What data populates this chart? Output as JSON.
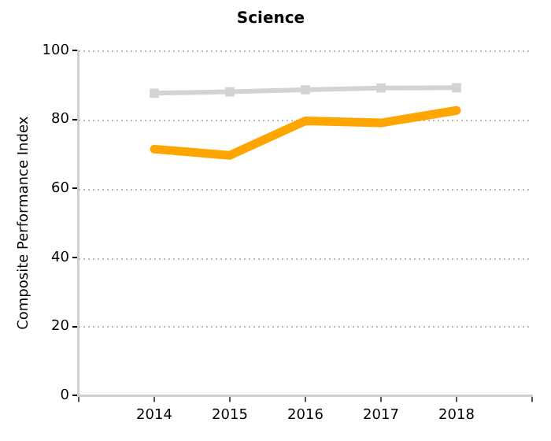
{
  "chart_data": {
    "type": "line",
    "title": "Science",
    "ylabel": "Composite Performance Index",
    "x": [
      2014,
      2015,
      2016,
      2017,
      2018
    ],
    "series": [
      {
        "color": "#d3d3d3",
        "values": [
          87.6,
          88,
          88.6,
          89.1,
          89.2
        ],
        "marker": "square"
      },
      {
        "color": "#ffa500",
        "values": [
          71.4,
          69.6,
          79.6,
          79,
          82.6
        ]
      }
    ],
    "xlim": [
      2013,
      2019
    ],
    "xticks": [
      {
        "value": 2013,
        "label": null
      },
      2014,
      2015,
      2016,
      2017,
      2018,
      {
        "value": 2019,
        "label": null
      }
    ],
    "ylim": [
      0,
      100
    ],
    "yticks": [
      0,
      20,
      40,
      60,
      80,
      100
    ],
    "grid": "y",
    "legend": false,
    "marker": "none"
  }
}
